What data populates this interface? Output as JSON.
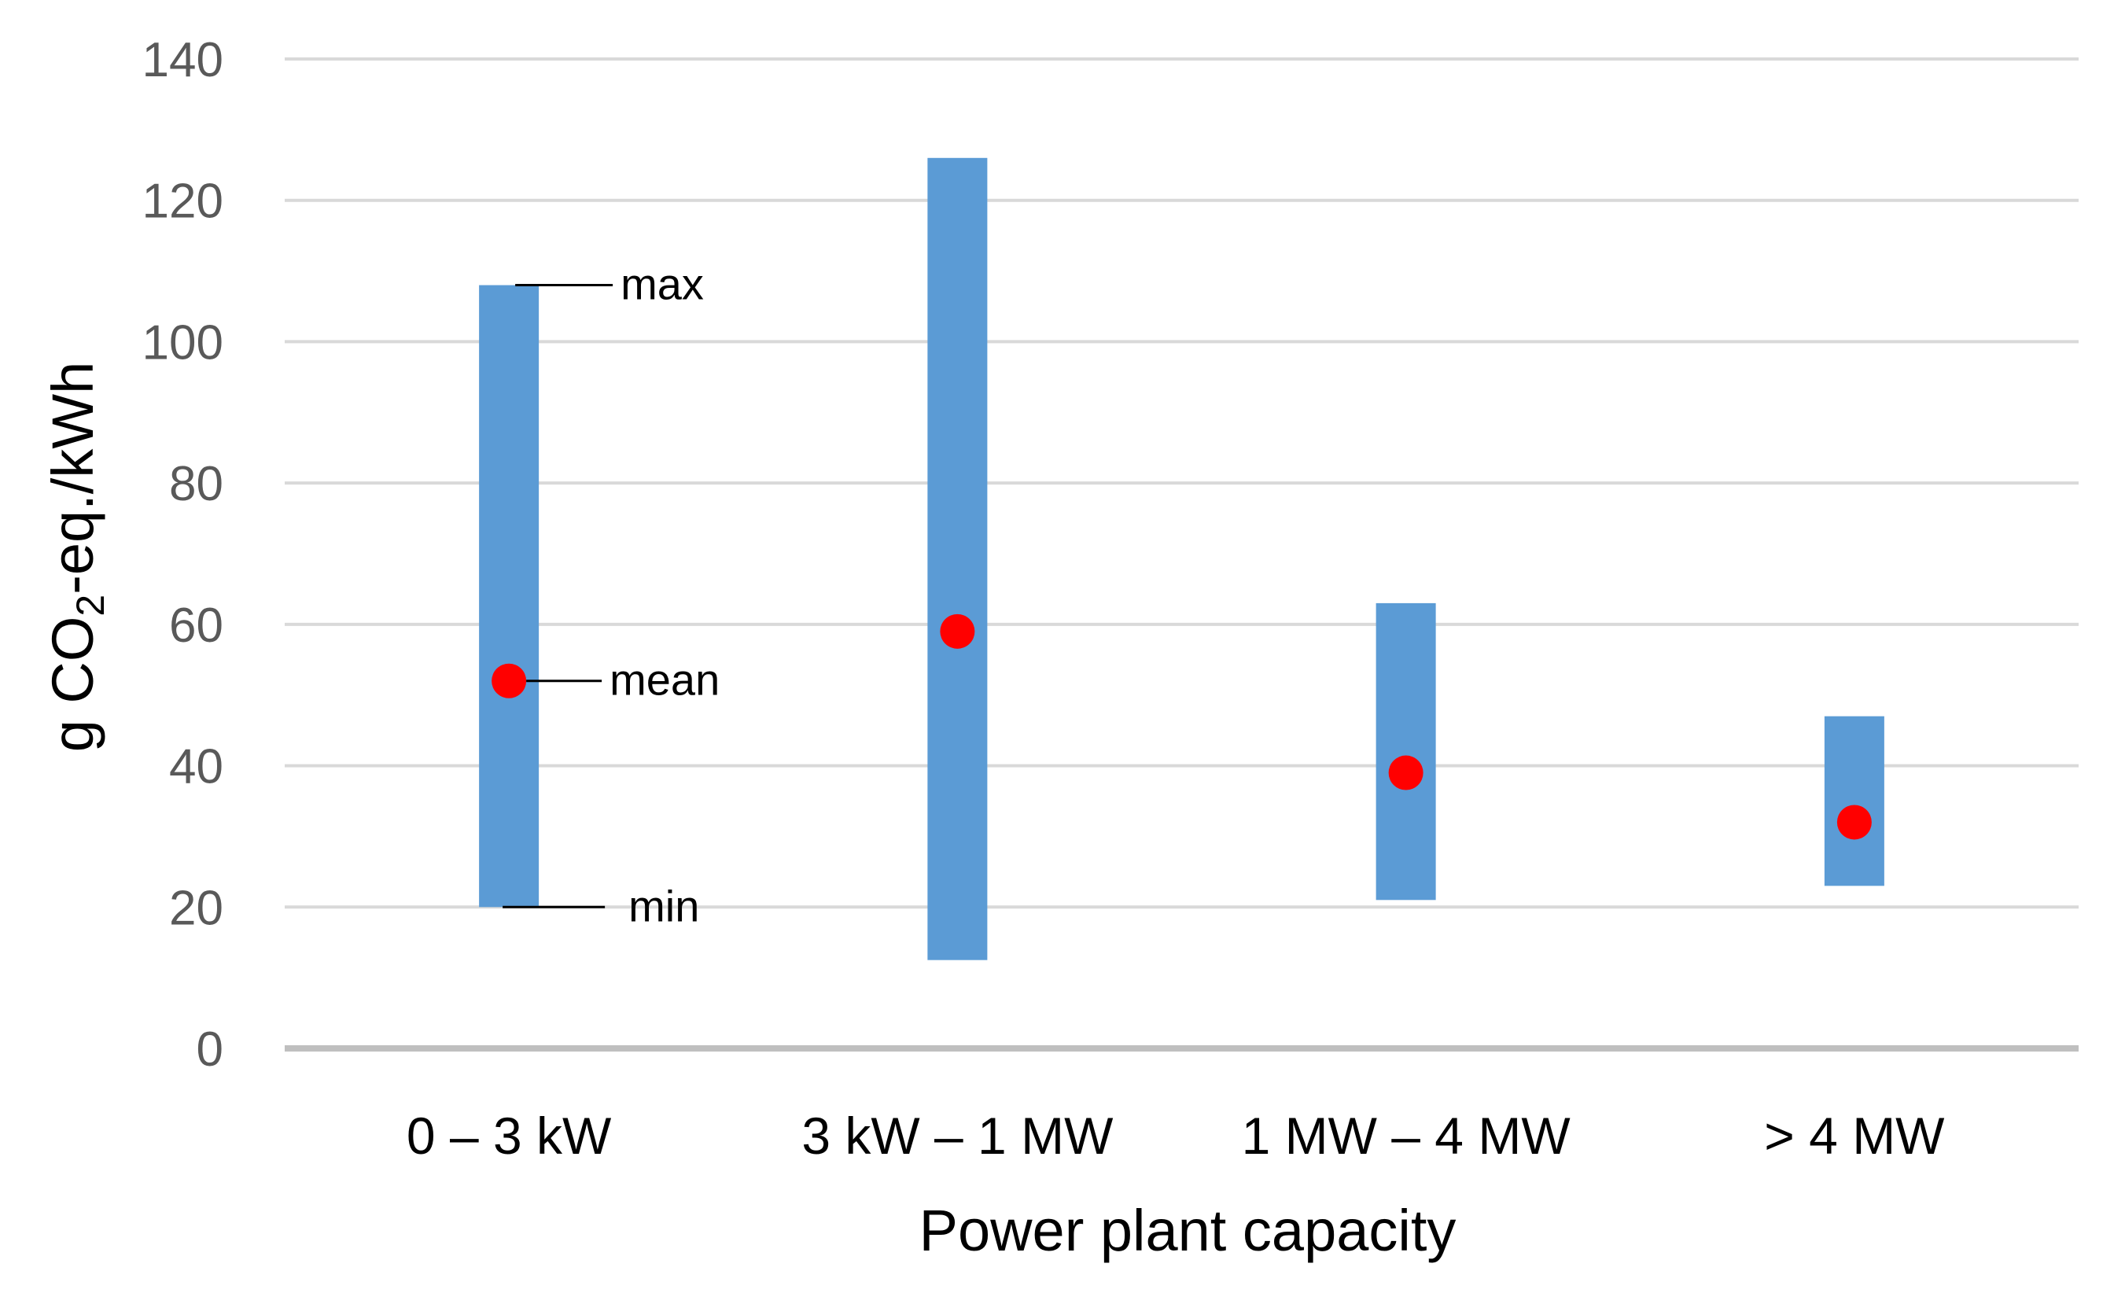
{
  "chart_data": {
    "type": "range-bar",
    "title": "",
    "xlabel": "Power plant capacity",
    "ylabel_parts": {
      "prefix": "g CO",
      "subscript": "2",
      "suffix": "-eq./kWh"
    },
    "ylim": [
      0,
      140
    ],
    "yticks": [
      0,
      20,
      40,
      60,
      80,
      100,
      120,
      140
    ],
    "grid": true,
    "categories": [
      "0 – 3 kW",
      "3 kW – 1 MW",
      "1 MW – 4 MW",
      "> 4 MW"
    ],
    "series": [
      {
        "name": "min",
        "values": [
          20,
          12.5,
          21,
          23
        ]
      },
      {
        "name": "max",
        "values": [
          108,
          126,
          63,
          47
        ]
      },
      {
        "name": "mean",
        "values": [
          52,
          59,
          39,
          32
        ]
      }
    ],
    "annotations": {
      "max_label": "max",
      "mean_label": "mean",
      "min_label": "min"
    },
    "colors": {
      "range_bar": "#5b9bd5",
      "mean_marker": "#ff0000",
      "gridline": "#d9d9d9",
      "axis_line": "#bfbfbf"
    }
  }
}
